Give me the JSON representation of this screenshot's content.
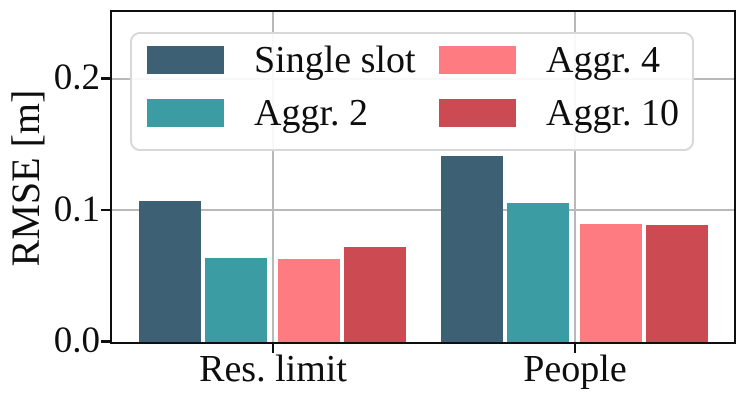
{
  "chart_data": {
    "type": "bar",
    "title": "",
    "categories": [
      "Res. limit",
      "People"
    ],
    "series": [
      {
        "name": "Single slot",
        "color": "#3D6075",
        "values": [
          0.107,
          0.141
        ]
      },
      {
        "name": "Aggr. 2",
        "color": "#3B9CA3",
        "values": [
          0.064,
          0.106
        ]
      },
      {
        "name": "Aggr. 4",
        "color": "#FD7B81",
        "values": [
          0.063,
          0.09
        ]
      },
      {
        "name": "Aggr. 10",
        "color": "#CC4B53",
        "values": [
          0.072,
          0.089
        ]
      }
    ],
    "xlabel": "",
    "ylabel": "RMSE [m]",
    "ylim": [
      0,
      0.25
    ],
    "yticks": [
      0,
      0.1,
      0.2
    ],
    "ytick_labels": [
      "0.0",
      "0.1",
      "0.2"
    ],
    "grid": true,
    "legend": {
      "position": "upper left",
      "columns": 2
    },
    "colors": {
      "spine": "#0f0f0f",
      "grid": "#b9b9b9",
      "text": "#0e0e0e",
      "legend_border": "#d8d8d8",
      "background": "#ffffff"
    }
  }
}
